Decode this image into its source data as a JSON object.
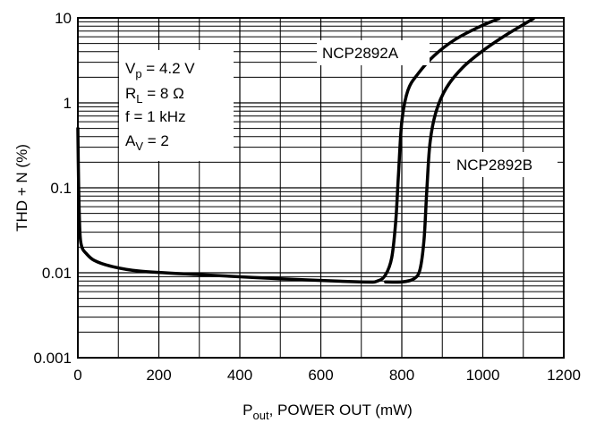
{
  "chart_data": {
    "type": "line",
    "xlabel_main": "P",
    "xlabel_sub": "out",
    "xlabel_rest": ", POWER OUT (mW)",
    "ylabel": "THD + N (%)",
    "xlim": [
      0,
      1200
    ],
    "ylim": [
      0.001,
      10
    ],
    "y_scale": "log",
    "grid": true,
    "x_ticks": [
      "0",
      "200",
      "400",
      "600",
      "800",
      "1000",
      "1200"
    ],
    "y_ticks": [
      "0.001",
      "0.01",
      "0.1",
      "1",
      "10"
    ],
    "conditions": {
      "vp": {
        "sym": "V",
        "sub": "p",
        "rest": " = 4.2 V"
      },
      "rl": {
        "sym": "R",
        "sub": "L",
        "rest": " = 8 Ω"
      },
      "f": {
        "sym": "f",
        "sub": "",
        "rest": " = 1 kHz"
      },
      "av": {
        "sym": "A",
        "sub": "V",
        "rest": " = 2"
      }
    },
    "series": [
      {
        "name": "NCP2892A",
        "x": [
          0,
          2,
          5,
          10,
          20,
          40,
          80,
          150,
          300,
          500,
          700,
          740,
          760,
          775,
          785,
          792,
          800,
          815,
          840,
          880,
          930,
          990,
          1040
        ],
        "y": [
          0.5,
          0.1,
          0.03,
          0.02,
          0.017,
          0.014,
          0.012,
          0.0105,
          0.0095,
          0.0085,
          0.0078,
          0.008,
          0.0095,
          0.015,
          0.04,
          0.15,
          0.6,
          1.4,
          2.2,
          3.6,
          5.5,
          7.8,
          9.8
        ]
      },
      {
        "name": "NCP2892B",
        "x": [
          760,
          800,
          830,
          845,
          855,
          862,
          870,
          885,
          910,
          950,
          1000,
          1060,
          1125
        ],
        "y": [
          0.0078,
          0.0078,
          0.0085,
          0.011,
          0.025,
          0.1,
          0.35,
          0.8,
          1.5,
          2.6,
          4.1,
          6.4,
          9.8
        ]
      }
    ]
  }
}
